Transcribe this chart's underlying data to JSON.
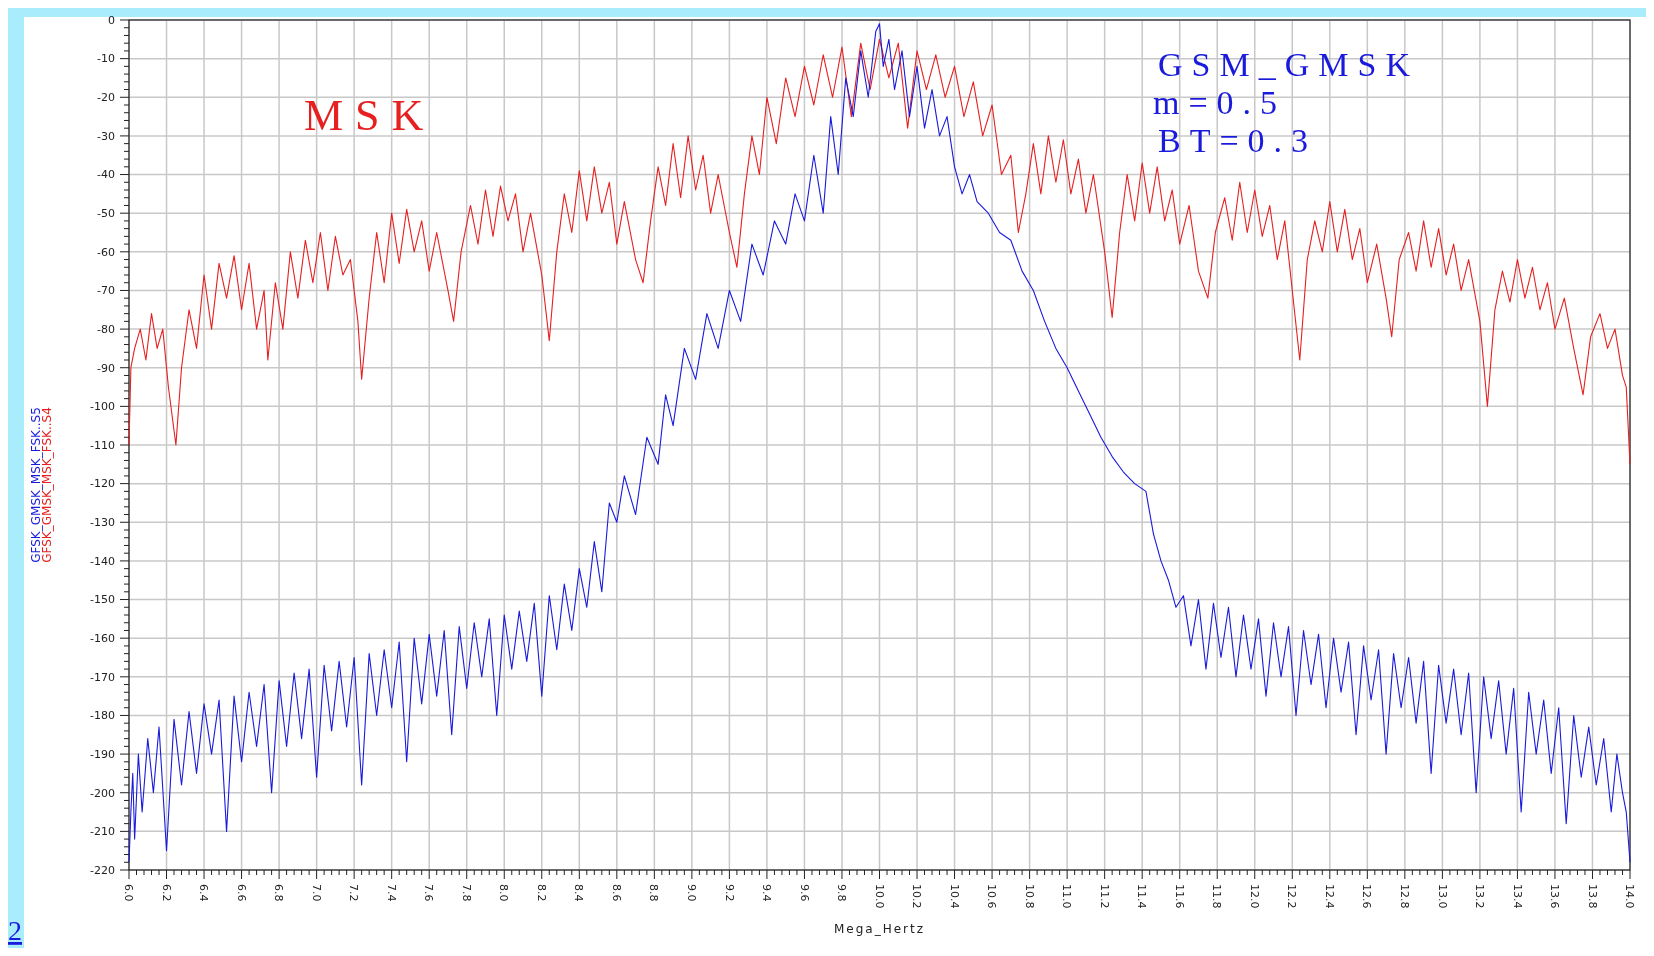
{
  "chart_data": {
    "type": "line",
    "xlabel": "Mega_Hertz",
    "annotations": [
      "MSK",
      "GSM_GMSK",
      "m=0.5",
      "BT=0.3",
      "2"
    ],
    "xlim": [
      6,
      14
    ],
    "ylim": [
      -220,
      0
    ],
    "xticks": [
      {
        "value": 6,
        "label": "6.0"
      },
      {
        "value": 6.2,
        "label": "6.2"
      },
      {
        "value": 6.4,
        "label": "6.4"
      },
      {
        "value": 6.6,
        "label": "6.6"
      },
      {
        "value": 6.8,
        "label": "6.8"
      },
      {
        "value": 7,
        "label": "7.0"
      },
      {
        "value": 7.2,
        "label": "7.2"
      },
      {
        "value": 7.4,
        "label": "7.4"
      },
      {
        "value": 7.6,
        "label": "7.6"
      },
      {
        "value": 7.8,
        "label": "7.8"
      },
      {
        "value": 8,
        "label": "8.0"
      },
      {
        "value": 8.2,
        "label": "8.2"
      },
      {
        "value": 8.4,
        "label": "8.4"
      },
      {
        "value": 8.6,
        "label": "8.6"
      },
      {
        "value": 8.8,
        "label": "8.8"
      },
      {
        "value": 9,
        "label": "9.0"
      },
      {
        "value": 9.2,
        "label": "9.2"
      },
      {
        "value": 9.4,
        "label": "9.4"
      },
      {
        "value": 9.6,
        "label": "9.6"
      },
      {
        "value": 9.8,
        "label": "9.8"
      },
      {
        "value": 10,
        "label": "10.0"
      },
      {
        "value": 10.2,
        "label": "10.2"
      },
      {
        "value": 10.4,
        "label": "10.4"
      },
      {
        "value": 10.6,
        "label": "10.6"
      },
      {
        "value": 10.8,
        "label": "10.8"
      },
      {
        "value": 11,
        "label": "11.0"
      },
      {
        "value": 11.2,
        "label": "11.2"
      },
      {
        "value": 11.4,
        "label": "11.4"
      },
      {
        "value": 11.6,
        "label": "11.6"
      },
      {
        "value": 11.8,
        "label": "11.8"
      },
      {
        "value": 12,
        "label": "12.0"
      },
      {
        "value": 12.2,
        "label": "12.2"
      },
      {
        "value": 12.4,
        "label": "12.4"
      },
      {
        "value": 12.6,
        "label": "12.6"
      },
      {
        "value": 12.8,
        "label": "12.8"
      },
      {
        "value": 13,
        "label": "13.0"
      },
      {
        "value": 13.2,
        "label": "13.2"
      },
      {
        "value": 13.4,
        "label": "13.4"
      },
      {
        "value": 13.6,
        "label": "13.6"
      },
      {
        "value": 13.8,
        "label": "13.8"
      },
      {
        "value": 14,
        "label": "14.0"
      }
    ],
    "yticks": [
      0,
      -10,
      -20,
      -30,
      -40,
      -50,
      -60,
      -70,
      -80,
      -90,
      -100,
      -110,
      -120,
      -130,
      -140,
      -150,
      -160,
      -170,
      -180,
      -190,
      -200,
      -210,
      -220
    ],
    "grid": true,
    "marker": "none",
    "line_style": "solid",
    "series": [
      {
        "name": "GFSK_GMSK_MSK_FSK..S5",
        "color": "#1a1adc",
        "x": [
          6.0,
          6.01,
          6.02,
          6.03,
          6.05,
          6.07,
          6.1,
          6.13,
          6.16,
          6.2,
          6.24,
          6.28,
          6.32,
          6.36,
          6.4,
          6.44,
          6.48,
          6.52,
          6.56,
          6.6,
          6.64,
          6.68,
          6.72,
          6.76,
          6.8,
          6.84,
          6.88,
          6.92,
          6.96,
          7.0,
          7.04,
          7.08,
          7.12,
          7.16,
          7.2,
          7.24,
          7.28,
          7.32,
          7.36,
          7.4,
          7.44,
          7.48,
          7.52,
          7.56,
          7.6,
          7.64,
          7.68,
          7.72,
          7.76,
          7.8,
          7.84,
          7.88,
          7.92,
          7.96,
          8.0,
          8.04,
          8.08,
          8.12,
          8.16,
          8.2,
          8.24,
          8.28,
          8.32,
          8.36,
          8.4,
          8.44,
          8.48,
          8.52,
          8.56,
          8.6,
          8.64,
          8.7,
          8.76,
          8.82,
          8.86,
          8.9,
          8.96,
          9.02,
          9.08,
          9.14,
          9.2,
          9.26,
          9.32,
          9.38,
          9.44,
          9.5,
          9.55,
          9.6,
          9.65,
          9.7,
          9.74,
          9.78,
          9.82,
          9.86,
          9.9,
          9.94,
          9.98,
          10.0,
          10.02,
          10.05,
          10.08,
          10.12,
          10.16,
          10.2,
          10.24,
          10.28,
          10.32,
          10.36,
          10.4,
          10.44,
          10.48,
          10.52,
          10.58,
          10.64,
          10.7,
          10.76,
          10.82,
          10.88,
          10.94,
          11.0,
          11.06,
          11.12,
          11.18,
          11.24,
          11.3,
          11.36,
          11.42,
          11.46,
          11.5,
          11.54,
          11.58,
          11.62,
          11.66,
          11.7,
          11.74,
          11.78,
          11.82,
          11.86,
          11.9,
          11.94,
          11.98,
          12.02,
          12.06,
          12.1,
          12.14,
          12.18,
          12.22,
          12.26,
          12.3,
          12.34,
          12.38,
          12.42,
          12.46,
          12.5,
          12.54,
          12.58,
          12.62,
          12.66,
          12.7,
          12.74,
          12.78,
          12.82,
          12.86,
          12.9,
          12.94,
          12.98,
          13.02,
          13.06,
          13.1,
          13.14,
          13.18,
          13.22,
          13.26,
          13.3,
          13.34,
          13.38,
          13.42,
          13.46,
          13.5,
          13.54,
          13.58,
          13.62,
          13.66,
          13.7,
          13.74,
          13.78,
          13.82,
          13.86,
          13.9,
          13.93,
          13.96,
          13.98,
          14.0
        ],
        "values": [
          -218,
          -205,
          -195,
          -212,
          -190,
          -205,
          -186,
          -200,
          -183,
          -215,
          -181,
          -198,
          -179,
          -195,
          -177,
          -190,
          -176,
          -210,
          -175,
          -192,
          -174,
          -188,
          -172,
          -200,
          -171,
          -188,
          -169,
          -186,
          -168,
          -196,
          -167,
          -184,
          -166,
          -183,
          -165,
          -198,
          -164,
          -180,
          -163,
          -178,
          -161,
          -192,
          -160,
          -177,
          -159,
          -175,
          -158,
          -185,
          -157,
          -173,
          -156,
          -170,
          -155,
          -180,
          -154,
          -168,
          -153,
          -166,
          -151,
          -175,
          -149,
          -163,
          -146,
          -158,
          -142,
          -152,
          -135,
          -148,
          -125,
          -130,
          -118,
          -128,
          -108,
          -115,
          -97,
          -105,
          -85,
          -93,
          -76,
          -85,
          -70,
          -78,
          -58,
          -66,
          -52,
          -58,
          -45,
          -52,
          -35,
          -50,
          -25,
          -40,
          -15,
          -25,
          -8,
          -20,
          -3,
          -1,
          -12,
          -5,
          -18,
          -8,
          -25,
          -12,
          -28,
          -18,
          -30,
          -25,
          -38,
          -45,
          -40,
          -47,
          -50,
          -55,
          -57,
          -65,
          -70,
          -78,
          -85,
          -90,
          -96,
          -102,
          -108,
          -113,
          -117,
          -120,
          -122,
          -133,
          -140,
          -145,
          -152,
          -149,
          -162,
          -150,
          -168,
          -151,
          -165,
          -152,
          -170,
          -154,
          -168,
          -155,
          -175,
          -156,
          -170,
          -157,
          -180,
          -158,
          -172,
          -159,
          -178,
          -160,
          -174,
          -161,
          -185,
          -162,
          -176,
          -163,
          -190,
          -164,
          -178,
          -165,
          -182,
          -166,
          -195,
          -167,
          -182,
          -168,
          -185,
          -169,
          -200,
          -170,
          -186,
          -171,
          -190,
          -173,
          -205,
          -174,
          -190,
          -176,
          -195,
          -178,
          -208,
          -180,
          -196,
          -183,
          -198,
          -186,
          -205,
          -190,
          -200,
          -205,
          -218
        ]
      },
      {
        "name": "GFSK_GMSK_MSK_FSK..S4",
        "color": "#e62020",
        "x": [
          6.0,
          6.01,
          6.03,
          6.06,
          6.09,
          6.12,
          6.15,
          6.18,
          6.21,
          6.25,
          6.28,
          6.32,
          6.36,
          6.4,
          6.44,
          6.48,
          6.52,
          6.56,
          6.6,
          6.64,
          6.68,
          6.72,
          6.74,
          6.78,
          6.82,
          6.86,
          6.9,
          6.94,
          6.98,
          7.02,
          7.06,
          7.1,
          7.14,
          7.18,
          7.22,
          7.24,
          7.28,
          7.32,
          7.36,
          7.4,
          7.44,
          7.48,
          7.52,
          7.56,
          7.6,
          7.64,
          7.7,
          7.73,
          7.77,
          7.82,
          7.86,
          7.9,
          7.94,
          7.98,
          8.02,
          8.06,
          8.1,
          8.14,
          8.2,
          8.24,
          8.28,
          8.32,
          8.36,
          8.4,
          8.44,
          8.48,
          8.52,
          8.56,
          8.6,
          8.64,
          8.7,
          8.74,
          8.78,
          8.82,
          8.86,
          8.9,
          8.94,
          8.98,
          9.02,
          9.06,
          9.1,
          9.14,
          9.2,
          9.24,
          9.28,
          9.32,
          9.36,
          9.4,
          9.45,
          9.5,
          9.55,
          9.6,
          9.65,
          9.7,
          9.75,
          9.8,
          9.85,
          9.9,
          9.95,
          10.0,
          10.05,
          10.1,
          10.15,
          10.2,
          10.25,
          10.3,
          10.35,
          10.4,
          10.45,
          10.5,
          10.55,
          10.6,
          10.65,
          10.7,
          10.74,
          10.78,
          10.82,
          10.86,
          10.9,
          10.94,
          10.98,
          11.02,
          11.06,
          11.1,
          11.14,
          11.2,
          11.24,
          11.28,
          11.32,
          11.36,
          11.4,
          11.44,
          11.48,
          11.52,
          11.56,
          11.6,
          11.65,
          11.7,
          11.75,
          11.79,
          11.84,
          11.88,
          11.92,
          11.96,
          12.0,
          12.04,
          12.08,
          12.12,
          12.16,
          12.2,
          12.24,
          12.28,
          12.32,
          12.36,
          12.4,
          12.44,
          12.48,
          12.52,
          12.56,
          12.6,
          12.65,
          12.7,
          12.73,
          12.77,
          12.82,
          12.86,
          12.9,
          12.94,
          12.98,
          13.02,
          13.06,
          13.1,
          13.14,
          13.2,
          13.24,
          13.28,
          13.32,
          13.36,
          13.4,
          13.44,
          13.48,
          13.52,
          13.56,
          13.6,
          13.65,
          13.7,
          13.75,
          13.79,
          13.84,
          13.88,
          13.92,
          13.96,
          13.98,
          14.0
        ],
        "values": [
          -110,
          -90,
          -85,
          -80,
          -88,
          -76,
          -85,
          -80,
          -95,
          -110,
          -90,
          -75,
          -85,
          -66,
          -80,
          -63,
          -72,
          -61,
          -75,
          -63,
          -80,
          -70,
          -88,
          -68,
          -80,
          -60,
          -72,
          -57,
          -68,
          -55,
          -70,
          -56,
          -66,
          -62,
          -78,
          -93,
          -72,
          -55,
          -68,
          -50,
          -63,
          -49,
          -60,
          -52,
          -65,
          -55,
          -70,
          -78,
          -60,
          -48,
          -58,
          -44,
          -56,
          -43,
          -52,
          -45,
          -60,
          -50,
          -66,
          -83,
          -60,
          -45,
          -55,
          -39,
          -52,
          -38,
          -50,
          -42,
          -58,
          -47,
          -62,
          -68,
          -52,
          -38,
          -48,
          -32,
          -46,
          -30,
          -44,
          -35,
          -50,
          -40,
          -55,
          -64,
          -45,
          -30,
          -40,
          -20,
          -32,
          -15,
          -25,
          -12,
          -22,
          -9,
          -20,
          -7,
          -25,
          -6,
          -18,
          -5,
          -15,
          -6,
          -28,
          -8,
          -18,
          -9,
          -20,
          -12,
          -25,
          -16,
          -30,
          -22,
          -40,
          -35,
          -55,
          -45,
          -32,
          -45,
          -30,
          -42,
          -31,
          -45,
          -36,
          -50,
          -40,
          -60,
          -77,
          -55,
          -40,
          -52,
          -37,
          -50,
          -38,
          -52,
          -44,
          -58,
          -48,
          -65,
          -72,
          -55,
          -46,
          -57,
          -42,
          -55,
          -44,
          -56,
          -48,
          -62,
          -52,
          -70,
          -88,
          -62,
          -52,
          -60,
          -47,
          -60,
          -49,
          -62,
          -54,
          -68,
          -58,
          -72,
          -82,
          -62,
          -55,
          -65,
          -52,
          -64,
          -54,
          -66,
          -58,
          -70,
          -62,
          -78,
          -100,
          -75,
          -65,
          -73,
          -62,
          -72,
          -64,
          -75,
          -68,
          -80,
          -72,
          -85,
          -97,
          -82,
          -76,
          -85,
          -80,
          -92,
          -95,
          -115
        ]
      }
    ]
  }
}
